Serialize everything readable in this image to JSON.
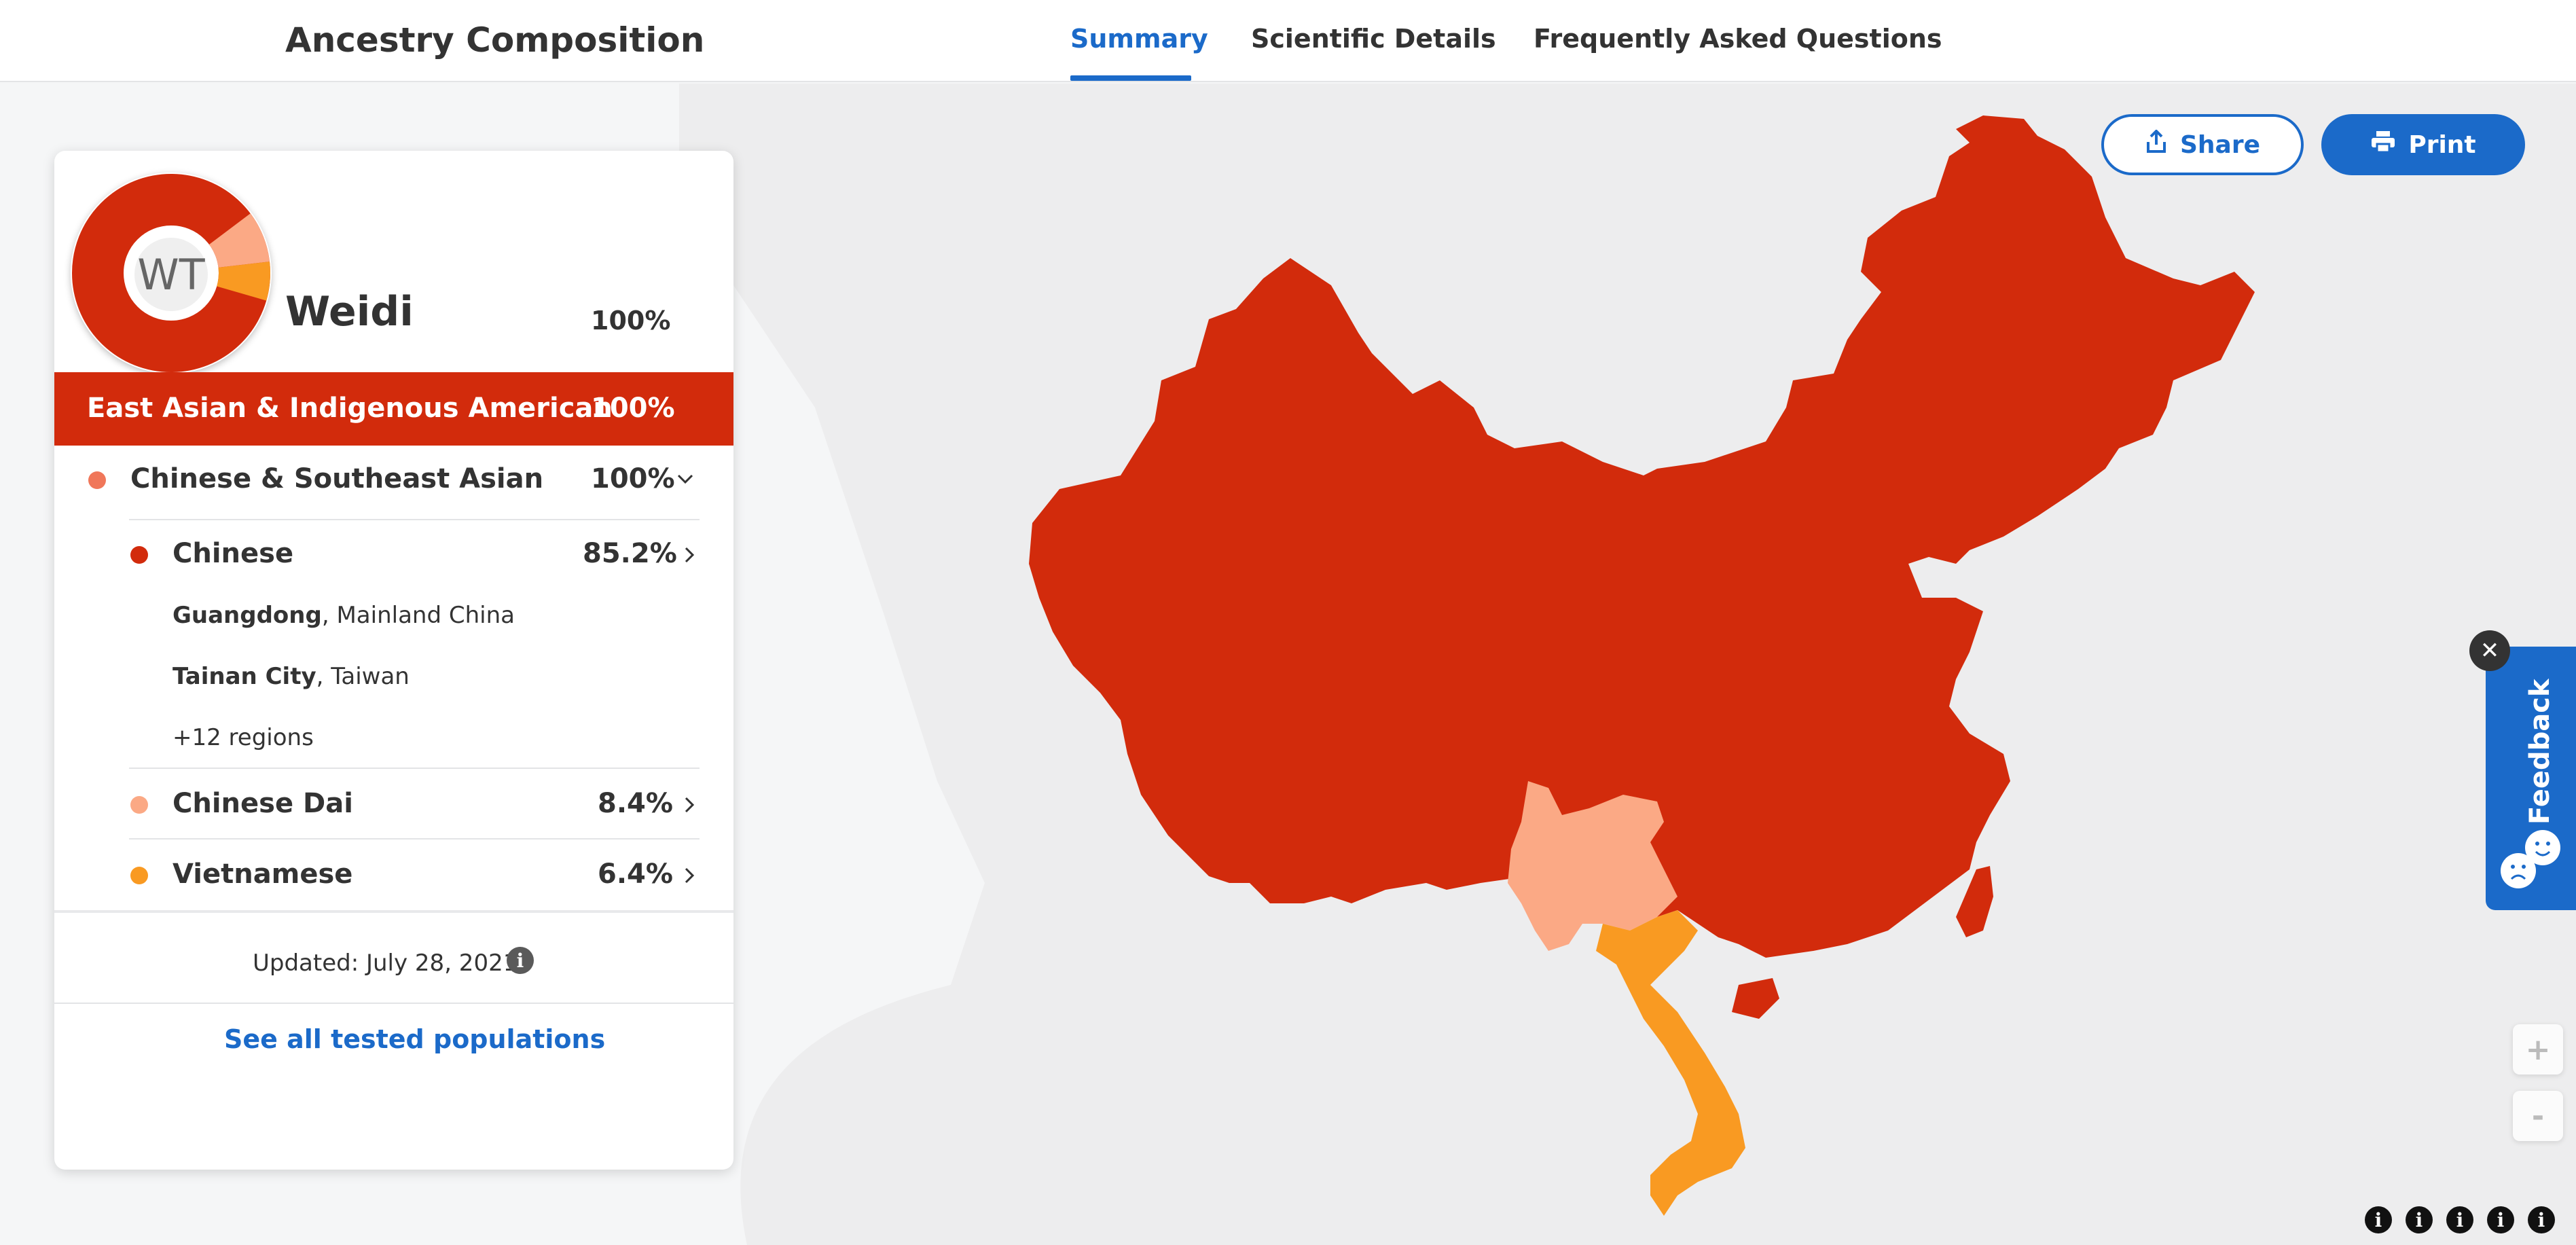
{
  "header": {
    "title": "Ancestry Composition",
    "tabs": [
      {
        "label": "Summary",
        "active": true
      },
      {
        "label": "Scientific Details",
        "active": false
      },
      {
        "label": "Frequently Asked Questions",
        "active": false
      }
    ]
  },
  "actions": {
    "share_label": "Share",
    "print_label": "Print"
  },
  "card": {
    "initials": "WT",
    "user_name": "Weidi",
    "user_percent": "100%",
    "region": {
      "label": "East Asian & Indigenous American",
      "percent": "100%"
    },
    "group": {
      "label": "Chinese & Southeast Asian",
      "percent": "100%",
      "dot_color": "#f0775a"
    },
    "populations": [
      {
        "label": "Chinese",
        "percent": "85.2%",
        "color": "#d22b0c",
        "value": 85.2
      },
      {
        "label": "Chinese Dai",
        "percent": "8.4%",
        "color": "#fba985",
        "value": 8.4
      },
      {
        "label": "Vietnamese",
        "percent": "6.4%",
        "color": "#f99a22",
        "value": 6.4
      }
    ],
    "subregions": [
      {
        "bold": "Guangdong",
        "rest": ", Mainland China"
      },
      {
        "bold": "Tainan City",
        "rest": ", Taiwan"
      }
    ],
    "more_regions": "+12 regions",
    "updated": "Updated: July 28, 2021",
    "see_all": "See all tested populations"
  },
  "feedback": {
    "label": "Feedback",
    "close_icon": "close-icon"
  },
  "map": {
    "zoom_in": "+",
    "zoom_out": "-",
    "attribution_icons": [
      "i",
      "i",
      "i",
      "i",
      "i"
    ]
  },
  "colors": {
    "brand_blue": "#1b6ac9",
    "chinese": "#d22b0c",
    "chinese_dai": "#fba985",
    "vietnamese": "#f99a22"
  }
}
